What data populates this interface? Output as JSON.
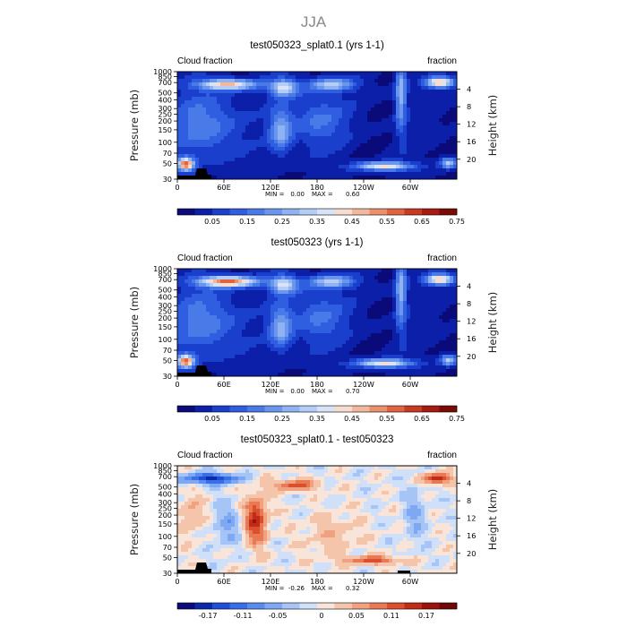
{
  "page": {
    "title": "JJA"
  },
  "panel_common": {
    "left_label": "Cloud fraction",
    "right_label": "fraction",
    "y_label": "Pressure (mb)",
    "y2_label": "Height (km)",
    "x_ticks": [
      "0",
      "60E",
      "120E",
      "180",
      "120W",
      "60W"
    ],
    "y_ticks": [
      "30",
      "50",
      "70",
      "100",
      "150",
      "200",
      "250",
      "300",
      "400",
      "500",
      "700",
      "850",
      "1000"
    ],
    "y_tick_values": [
      30,
      50,
      70,
      100,
      150,
      200,
      250,
      300,
      400,
      500,
      700,
      850,
      1000
    ],
    "y2_ticks": [
      "20",
      "16",
      "12",
      "8",
      "4"
    ],
    "y2_tick_values": [
      20,
      16,
      12,
      8,
      4
    ]
  },
  "chart_data": [
    {
      "type": "heatmap",
      "title": "test050323_splat0.1 (yrs 1-1)",
      "min_label": "MIN =",
      "min_value": "0.00",
      "max_label": "MAX =",
      "max_value": "0.60",
      "colorbar_labels": [
        "0.05",
        "0.15",
        "0.25",
        "0.35",
        "0.45",
        "0.55",
        "0.65",
        "0.75"
      ],
      "colorbar_levels": [
        0.05,
        0.1,
        0.15,
        0.2,
        0.25,
        0.3,
        0.35,
        0.4,
        0.45,
        0.5,
        0.55,
        0.6,
        0.65,
        0.7,
        0.75
      ],
      "ylim": [
        1000,
        30
      ],
      "xlim": [
        0,
        360
      ],
      "grid": false
    },
    {
      "type": "heatmap",
      "title": "test050323 (yrs 1-1)",
      "min_label": "MIN =",
      "min_value": "0.00",
      "max_label": "MAX =",
      "max_value": "0.70",
      "colorbar_labels": [
        "0.05",
        "0.15",
        "0.25",
        "0.35",
        "0.45",
        "0.55",
        "0.65",
        "0.75"
      ],
      "colorbar_levels": [
        0.05,
        0.1,
        0.15,
        0.2,
        0.25,
        0.3,
        0.35,
        0.4,
        0.45,
        0.5,
        0.55,
        0.6,
        0.65,
        0.7,
        0.75
      ],
      "ylim": [
        1000,
        30
      ],
      "xlim": [
        0,
        360
      ],
      "grid": false
    },
    {
      "type": "heatmap",
      "title": "test050323_splat0.1 - test050323",
      "min_label": "MIN =",
      "min_value": "-0.26",
      "max_label": "MAX =",
      "max_value": "0.32",
      "colorbar_labels": [
        "-0.17",
        "-0.11",
        "-0.05",
        "0",
        "0.05",
        "0.11",
        "0.17"
      ],
      "colorbar_levels": [
        -0.2,
        -0.17,
        -0.14,
        -0.11,
        -0.08,
        -0.05,
        -0.02,
        0,
        0.02,
        0.05,
        0.08,
        0.11,
        0.14,
        0.17,
        0.2
      ],
      "ylim": [
        1000,
        30
      ],
      "xlim": [
        0,
        360
      ],
      "grid": false
    }
  ],
  "colors": {
    "seq": [
      "#0a0a7a",
      "#0b1fa8",
      "#1a3fcc",
      "#2f5ee0",
      "#4a7ae8",
      "#6b96ee",
      "#8fb2f2",
      "#b3cdf6",
      "#d6e3f8",
      "#f6ddcf",
      "#f2b89e",
      "#eb8f6c",
      "#e06441",
      "#c93a22",
      "#a51b10",
      "#7a0a05"
    ],
    "div": [
      "#0a0a7a",
      "#0b2aa8",
      "#1f4fd6",
      "#3a6ee6",
      "#5a8ced",
      "#7fa8f2",
      "#a6c4f5",
      "#cfe0f8",
      "#f8e4d8",
      "#f5c5ab",
      "#f0a17f",
      "#e77954",
      "#d94f2f",
      "#c02c17",
      "#9c130a",
      "#6f0805"
    ]
  }
}
